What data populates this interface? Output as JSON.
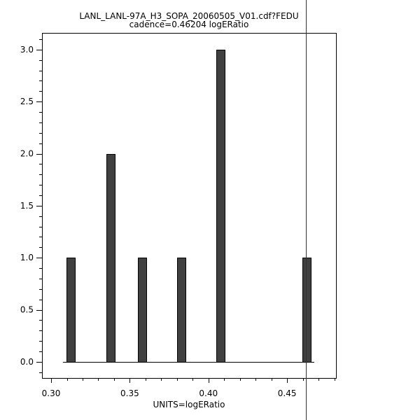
{
  "chart_data": {
    "type": "bar",
    "title": "LANL_LANL-97A_H3_SOPA_20060505_V01.cdf?FEDU",
    "subtitle": "cadence=0.46204 logERatio",
    "xlabel": "UNITS=logERatio",
    "ylabel": "",
    "xlim": [
      0.2942,
      0.4811
    ],
    "ylim": [
      -0.155,
      3.16
    ],
    "x_ticks": [
      0.3,
      0.35,
      0.4,
      0.45
    ],
    "x_tick_labels": [
      "0.30",
      "0.35",
      "0.40",
      "0.45"
    ],
    "x_minor_step": 0.01,
    "y_ticks": [
      0,
      0.5,
      1,
      1.5,
      2,
      2.5,
      3
    ],
    "y_tick_labels": [
      "0.0",
      "0.5",
      "1.0",
      "1.5",
      "2.0",
      "2.5",
      "3.0"
    ],
    "y_minor_step": 0.1,
    "bar_width": 0.0053,
    "x": [
      0.3125,
      0.3378,
      0.3579,
      0.3828,
      0.4077,
      0.4624
    ],
    "values": [
      1,
      2,
      1,
      1,
      3,
      1
    ],
    "baseline_range": [
      0.3075,
      0.4673
    ],
    "cadence_marker_x": 0.462,
    "grid": false,
    "colors": {
      "bar": "#404040",
      "axis": "#000000"
    }
  }
}
